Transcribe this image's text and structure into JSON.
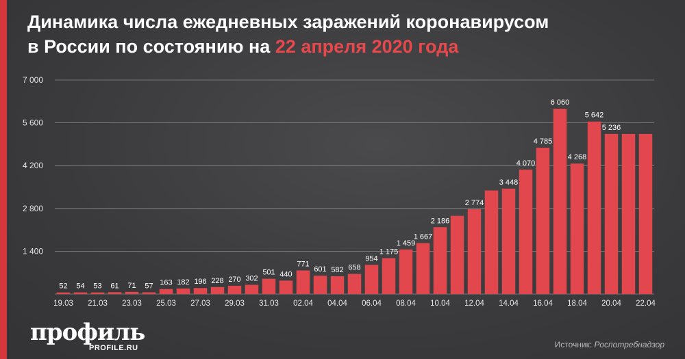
{
  "title": {
    "line1": "Динамика числа ежедневных заражений коронавирусом",
    "line2_prefix": "в России по состоянию на ",
    "line2_highlight": "22 апреля 2020 года"
  },
  "source": {
    "label": "Источник: ",
    "name": "Роспотребнадзор"
  },
  "logo": {
    "name": "профиль",
    "site": "PROFILE.RU"
  },
  "colors": {
    "bar": "#e1474c",
    "accent": "#d6373d",
    "background": "#3d3d3f"
  },
  "chart_data": {
    "type": "bar",
    "title": "Динамика числа ежедневных заражений коронавирусом в России по состоянию на 22 апреля 2020 года",
    "xlabel": "",
    "ylabel": "",
    "ylim": [
      0,
      7000
    ],
    "yticks": [
      1400,
      2800,
      4200,
      5600,
      7000
    ],
    "ytick_labels": [
      "1 400",
      "2 800",
      "4 200",
      "5 600",
      "7 000"
    ],
    "grid": true,
    "categories": [
      "19.03",
      "20.03",
      "21.03",
      "22.03",
      "23.03",
      "24.03",
      "25.03",
      "26.03",
      "27.03",
      "28.03",
      "29.03",
      "30.03",
      "31.03",
      "01.04",
      "02.04",
      "03.04",
      "04.04",
      "05.04",
      "06.04",
      "07.04",
      "08.04",
      "09.04",
      "10.04",
      "11.04",
      "12.04",
      "13.04",
      "14.04",
      "15.04",
      "16.04",
      "17.04",
      "18.04",
      "19.04",
      "20.04",
      "21.04",
      "22.04"
    ],
    "xtick_labels": [
      "19.03",
      "",
      "21.03",
      "",
      "23.03",
      "",
      "25.03",
      "",
      "27.03",
      "",
      "29.03",
      "",
      "31.03",
      "",
      "02.04",
      "",
      "04.04",
      "",
      "06.04",
      "",
      "08.04",
      "",
      "10.04",
      "",
      "12.04",
      "",
      "14.04",
      "",
      "16.04",
      "",
      "18.04",
      "",
      "20.04",
      "",
      "22.04"
    ],
    "values": [
      52,
      54,
      53,
      61,
      71,
      57,
      163,
      182,
      196,
      228,
      270,
      302,
      501,
      440,
      771,
      601,
      582,
      658,
      954,
      1175,
      1459,
      1667,
      2186,
      2558,
      2774,
      3388,
      3448,
      4070,
      4785,
      6060,
      4268,
      5642,
      5236,
      5236,
      5236
    ],
    "data_labels": [
      "52",
      "54",
      "53",
      "61",
      "71",
      "57",
      "163",
      "182",
      "196",
      "228",
      "270",
      "302",
      "501",
      "440",
      "771",
      "601",
      "582",
      "658",
      "954",
      "1 175",
      "1 459",
      "1 667",
      "2 186",
      "",
      "2 774",
      "",
      "3 448",
      "4 070",
      "4 785",
      "6 060",
      "4 268",
      "5 642",
      "5 236",
      "",
      ""
    ]
  }
}
